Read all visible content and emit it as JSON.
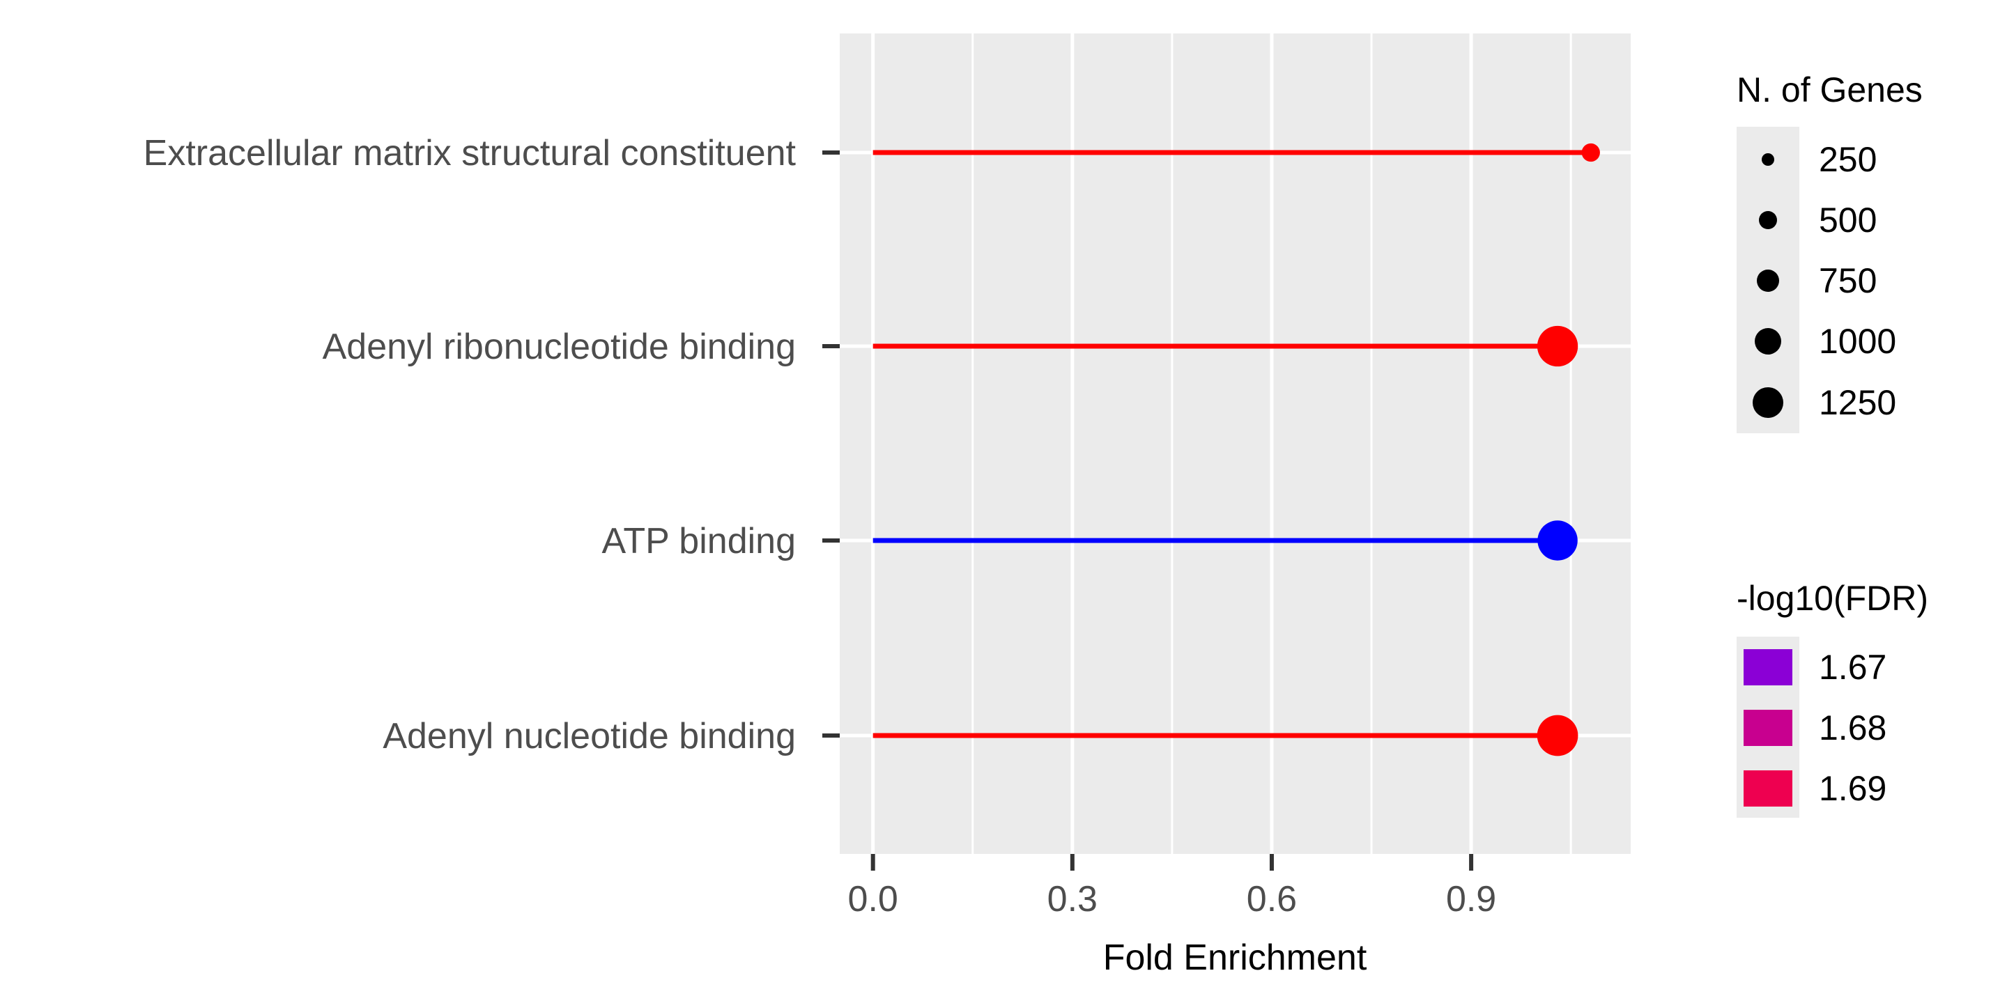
{
  "chart_data": {
    "type": "lollipop",
    "xlabel": "Fold Enrichment",
    "ylabel": "",
    "xlim": [
      -0.05,
      1.14
    ],
    "x_ticks": [
      0.0,
      0.3,
      0.6,
      0.9
    ],
    "x_tick_labels": [
      "0.0",
      "0.3",
      "0.6",
      "0.9"
    ],
    "x_minor_ticks": [
      0.15,
      0.45,
      0.75,
      1.05
    ],
    "categories": [
      "Extracellular matrix structural constituent",
      "Adenyl ribonucleotide binding",
      "ATP binding",
      "Adenyl nucleotide binding"
    ],
    "points": [
      {
        "category": "Extracellular matrix structural constituent",
        "fold_enrichment": 1.08,
        "n_genes": 100,
        "neg_log10_fdr": 1.695,
        "color": "#ff0000"
      },
      {
        "category": "Adenyl ribonucleotide binding",
        "fold_enrichment": 1.03,
        "n_genes": 1300,
        "neg_log10_fdr": 1.695,
        "color": "#ff0000"
      },
      {
        "category": "ATP binding",
        "fold_enrichment": 1.03,
        "n_genes": 1250,
        "neg_log10_fdr": 1.665,
        "color": "#0000ff"
      },
      {
        "category": "Adenyl nucleotide binding",
        "fold_enrichment": 1.03,
        "n_genes": 1320,
        "neg_log10_fdr": 1.695,
        "color": "#ff0000"
      }
    ],
    "grid": true,
    "panel_background": "#ebebeb",
    "legend_position": "right",
    "size_legend": {
      "title": "N. of Genes",
      "entries": [
        {
          "label": "250",
          "value": 250
        },
        {
          "label": "500",
          "value": 500
        },
        {
          "label": "750",
          "value": 750
        },
        {
          "label": "1000",
          "value": 1000
        },
        {
          "label": "1250",
          "value": 1250
        }
      ]
    },
    "color_legend": {
      "title": "-log10(FDR)",
      "entries": [
        {
          "label": "1.67",
          "color": "#8b00d6"
        },
        {
          "label": "1.68",
          "color": "#c8008f"
        },
        {
          "label": "1.69",
          "color": "#ee0050"
        }
      ]
    }
  }
}
